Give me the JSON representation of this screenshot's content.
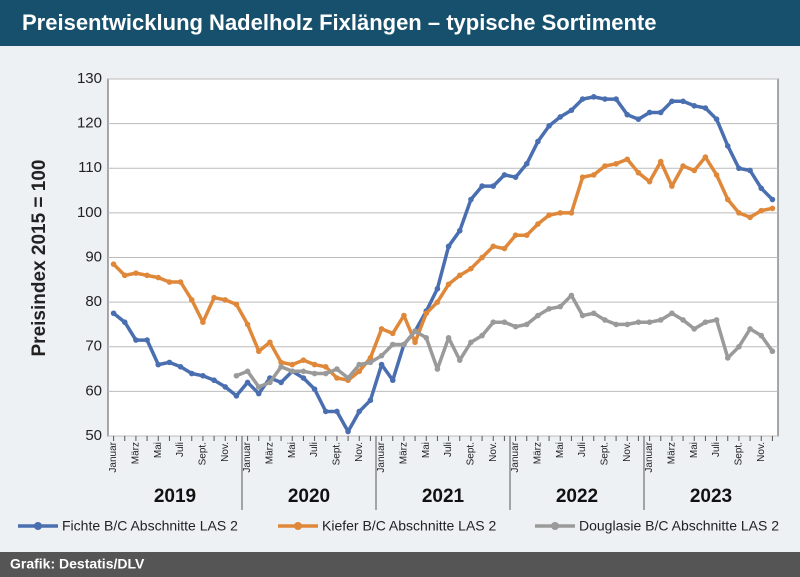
{
  "chart_data": {
    "type": "line",
    "title": "Preisentwicklung Nadelholz Fixlängen – typische Sortimente",
    "y_label": "Preisindex 2015 = 100",
    "source": "Grafik: Destatis/DLV",
    "categories": [
      "Januar",
      null,
      "März",
      null,
      "Mai",
      null,
      "Juli",
      null,
      "Sept.",
      null,
      "Nov.",
      null,
      "Januar",
      null,
      "März",
      null,
      "Mai",
      null,
      "Juli",
      null,
      "Sept.",
      null,
      "Nov.",
      null,
      "Januar",
      null,
      "März",
      null,
      "Mai",
      null,
      "Juli",
      null,
      "Sept.",
      null,
      "Nov.",
      null,
      "Januar",
      null,
      "März",
      null,
      "Mai",
      null,
      "Juli",
      null,
      "Sept.",
      null,
      "Nov.",
      null,
      "Januar",
      null,
      "März",
      null,
      "Mai",
      null,
      "Juli",
      null,
      "Sept.",
      null,
      "Nov.",
      null
    ],
    "years": [
      "2019",
      "2020",
      "2021",
      "2022",
      "2023"
    ],
    "series": [
      {
        "name": "Fichte B/C Abschnitte LAS 2",
        "color": "#4a6fb0",
        "values": [
          77.5,
          75.5,
          71.5,
          71.5,
          66,
          66.5,
          65.5,
          64,
          63.5,
          62.5,
          61,
          59,
          62,
          59.5,
          63,
          62,
          64.5,
          63,
          60.5,
          55.5,
          55.5,
          51,
          55.5,
          58,
          66,
          62.5,
          70.5,
          73.5,
          78,
          83,
          92.5,
          96,
          103,
          106,
          106,
          108.5,
          108,
          111,
          116,
          119.5,
          121.5,
          123,
          125.5,
          126,
          125.5,
          125.5,
          122,
          121,
          122.5,
          122.5,
          125,
          125,
          124,
          123.5,
          121,
          115,
          110,
          109.5,
          105.5,
          103
        ]
      },
      {
        "name": "Kiefer B/C Abschnitte LAS 2",
        "color": "#e0883a",
        "values": [
          88.5,
          86,
          86.5,
          86,
          85.5,
          84.5,
          84.5,
          80.5,
          75.5,
          81,
          80.5,
          79.5,
          75,
          69,
          71,
          66.5,
          66,
          67,
          66,
          65.5,
          63,
          62.5,
          64.5,
          67.5,
          74,
          73,
          77,
          71,
          77.5,
          80,
          84,
          86,
          87.5,
          90,
          92.5,
          92,
          95,
          95,
          97.5,
          99.5,
          100,
          100,
          108,
          108.5,
          110.5,
          111,
          112,
          109,
          107,
          111.5,
          106,
          110.5,
          109.5,
          112.5,
          108.5,
          103,
          100,
          99,
          100.5,
          101
        ]
      },
      {
        "name": "Douglasie B/C Abschnitte LAS 2",
        "color": "#9a9a9a",
        "values": [
          null,
          null,
          null,
          null,
          null,
          null,
          null,
          null,
          null,
          null,
          null,
          63.5,
          64.5,
          61,
          62,
          65.5,
          64.5,
          64.5,
          64,
          64,
          65,
          63,
          66,
          66.5,
          68,
          70.5,
          70.5,
          73.5,
          72,
          65,
          72,
          67,
          71,
          72.5,
          75.5,
          75.5,
          74.5,
          75,
          77,
          78.5,
          79,
          81.5,
          77,
          77.5,
          76,
          75,
          75,
          75.5,
          75.5,
          76,
          77.5,
          76,
          74,
          75.5,
          76,
          67.5,
          70,
          74,
          72.5,
          69
        ]
      }
    ],
    "ylim": [
      50,
      130
    ],
    "yticks": [
      50,
      60,
      70,
      80,
      90,
      100,
      110,
      120,
      130
    ],
    "grid": true
  }
}
